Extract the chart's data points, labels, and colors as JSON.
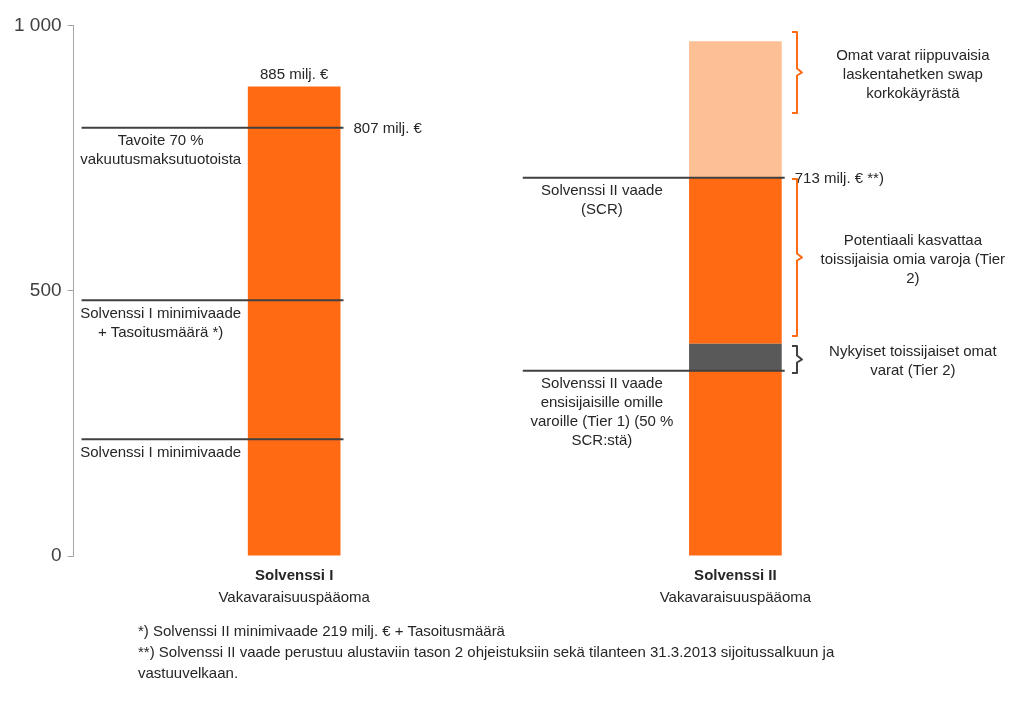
{
  "chart_data": {
    "type": "bar",
    "stacked": true,
    "categories": [
      "Solvenssi I",
      "Solvenssi II"
    ],
    "xlabel": "Vakavaraisuuspääoma",
    "series": [
      {
        "color": "#ff6a13",
        "values": [
          885,
          349
        ],
        "value_labels": [
          "885 milj. €",
          null
        ]
      },
      {
        "color": "#595959",
        "values": [
          null,
          51
        ]
      },
      {
        "color": "#ff6a13",
        "values": [
          null,
          313
        ]
      },
      {
        "color": "#fdbf94",
        "values": [
          null,
          257
        ]
      }
    ],
    "ylim": [
      0,
      1000
    ],
    "yticks": [
      0,
      500,
      {
        "value": 1000,
        "label": "1 000"
      }
    ],
    "grid": false,
    "legend": false,
    "ref_lines": [
      {
        "axis": "y",
        "value": 807,
        "label": "Tavoite 70 % vakuutusmaksutuotoista",
        "color": "#404040"
      },
      {
        "axis": "y",
        "value": 482,
        "label": "Solvenssi I minimivaade + Tasoitusmäärä *)",
        "color": "#404040"
      },
      {
        "axis": "y",
        "value": 220,
        "label": "Solvenssi I minimivaade",
        "color": "#404040"
      },
      {
        "axis": "y",
        "value": 713,
        "label": "Solvenssi II vaade (SCR)",
        "color": "#404040"
      },
      {
        "axis": "y",
        "value": 349,
        "label": "Solvenssi II vaade ensisijaisille omille varoille (Tier 1) (50 % SCR:stä)",
        "color": "#404040"
      }
    ],
    "annotations": [
      "807 milj. €",
      "713 milj. € **)",
      "Omat varat riippuvaisia laskentahetken swap korkokäyrästä",
      "Potentiaali kasvattaa toissijaisia omia varoja (Tier 2)",
      "Nykyiset toissijaiset omat varat (Tier 2)",
      "*) Solvenssi II minimivaade 219 milj. € + Tasoitusmäärä",
      "**) Solvenssi II vaade perustuu alustaviin tason 2 ohjeistuksiin sekä tilanteen 31.3.2013 sijoitussalkuun ja vastuuvelkaan."
    ]
  }
}
